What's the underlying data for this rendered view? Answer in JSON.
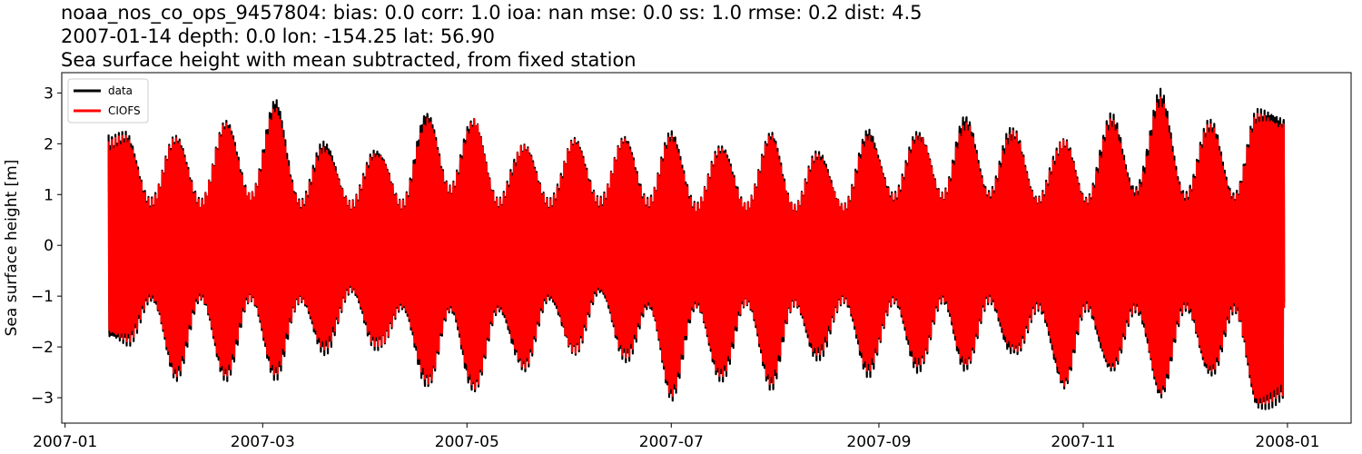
{
  "chart_data": {
    "type": "line",
    "title_lines": [
      "noaa_nos_co_ops_9457804: bias: 0.0  corr: 1.0  ioa: nan  mse: 0.0  ss: 1.0  rmse: 0.2  dist: 4.5",
      "2007-01-14 depth: 0.0 lon: -154.25 lat: 56.90",
      "Sea surface height with mean subtracted, from fixed station"
    ],
    "ylabel": "Sea surface height [m]",
    "xlabel": "",
    "xlim": [
      "2006-12-31",
      "2008-01-20"
    ],
    "ylim": [
      -3.5,
      3.4
    ],
    "x_ticks": [
      "2007-01",
      "2007-03",
      "2007-05",
      "2007-07",
      "2007-09",
      "2007-11",
      "2008-01"
    ],
    "y_ticks": [
      -3,
      -2,
      -1,
      0,
      1,
      2,
      3
    ],
    "legend_position": "top-left",
    "grid": false,
    "x_start": "2007-01-14",
    "x_end": "2007-12-31",
    "peak_dates": [
      "2007-01-19",
      "2007-02-03",
      "2007-02-18",
      "2007-03-05",
      "2007-03-20",
      "2007-04-04",
      "2007-04-19",
      "2007-05-03",
      "2007-05-18",
      "2007-06-02",
      "2007-06-17",
      "2007-07-01",
      "2007-07-16",
      "2007-07-31",
      "2007-08-14",
      "2007-08-29",
      "2007-09-13",
      "2007-09-27",
      "2007-10-11",
      "2007-10-26",
      "2007-11-09",
      "2007-11-24",
      "2007-12-09",
      "2007-12-23"
    ],
    "series": [
      {
        "name": "data",
        "color": "#000000",
        "envelope_max": [
          2.2,
          2.1,
          2.4,
          2.85,
          2.0,
          1.9,
          2.75,
          2.6,
          2.0,
          2.1,
          2.1,
          2.2,
          1.9,
          2.2,
          1.8,
          2.3,
          2.3,
          2.65,
          2.4,
          2.1,
          2.6,
          3.05,
          2.4,
          2.6
        ],
        "envelope_min": [
          -1.9,
          -2.6,
          -2.6,
          -2.6,
          -2.1,
          -2.05,
          -2.9,
          -3.0,
          -2.5,
          -2.1,
          -2.2,
          -3.0,
          -2.6,
          -2.8,
          -2.2,
          -2.6,
          -2.55,
          -2.55,
          -2.2,
          -2.9,
          -2.5,
          -3.0,
          -2.5,
          -3.15
        ]
      },
      {
        "name": "CIOFS",
        "color": "#ff0000",
        "envelope_max": [
          2.1,
          2.05,
          2.35,
          2.7,
          1.9,
          1.85,
          2.6,
          2.55,
          1.95,
          2.05,
          2.05,
          2.1,
          1.85,
          2.15,
          1.75,
          2.2,
          2.25,
          2.5,
          2.3,
          2.05,
          2.45,
          2.85,
          2.3,
          2.5
        ],
        "envelope_min": [
          -1.8,
          -2.5,
          -2.5,
          -2.5,
          -2.0,
          -2.0,
          -2.8,
          -2.9,
          -2.4,
          -2.05,
          -2.1,
          -2.9,
          -2.5,
          -2.7,
          -2.1,
          -2.5,
          -2.45,
          -2.45,
          -2.1,
          -2.8,
          -2.4,
          -2.9,
          -2.4,
          -3.05
        ]
      }
    ]
  }
}
